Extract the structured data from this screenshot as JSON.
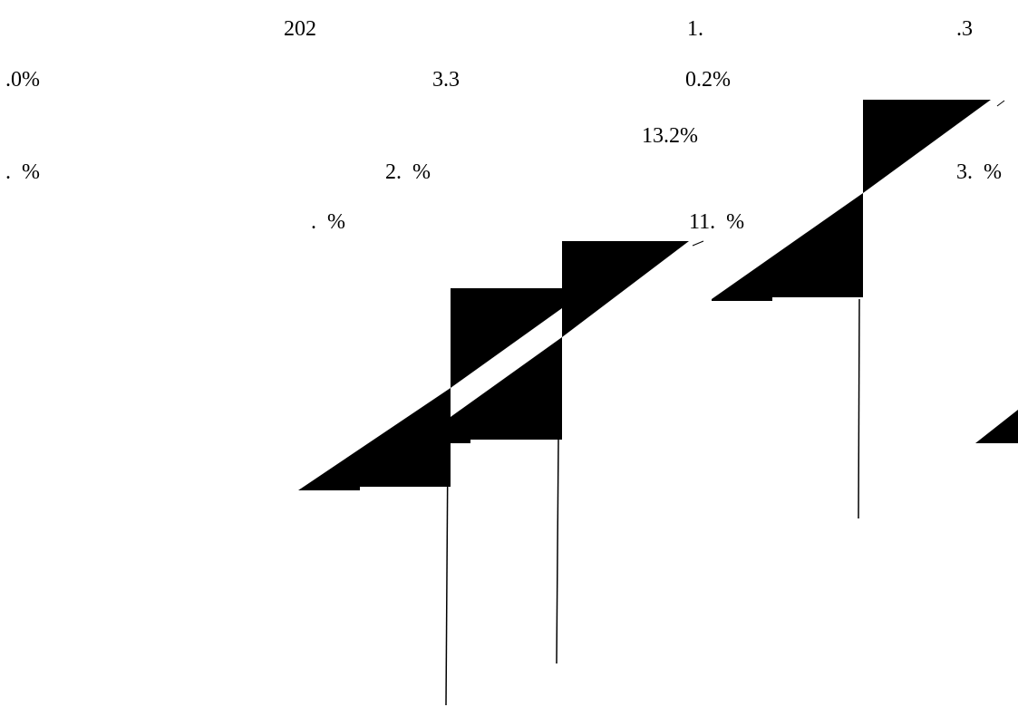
{
  "labels": {
    "l_202": "202",
    "l_1": "1.",
    "l_3": ".3",
    "l_0pct": ".0%",
    "l_33": "3.3",
    "l_02pct": "0.2%",
    "l_132": "13.2%",
    "l_dot1": ".  %",
    "l_2pct": "2.  %",
    "l_3pct": "3.  %",
    "l_dot2": ".  %",
    "l_11pct": "11.  %"
  },
  "colors": {
    "foreground": "#000000",
    "background": "#ffffff"
  }
}
